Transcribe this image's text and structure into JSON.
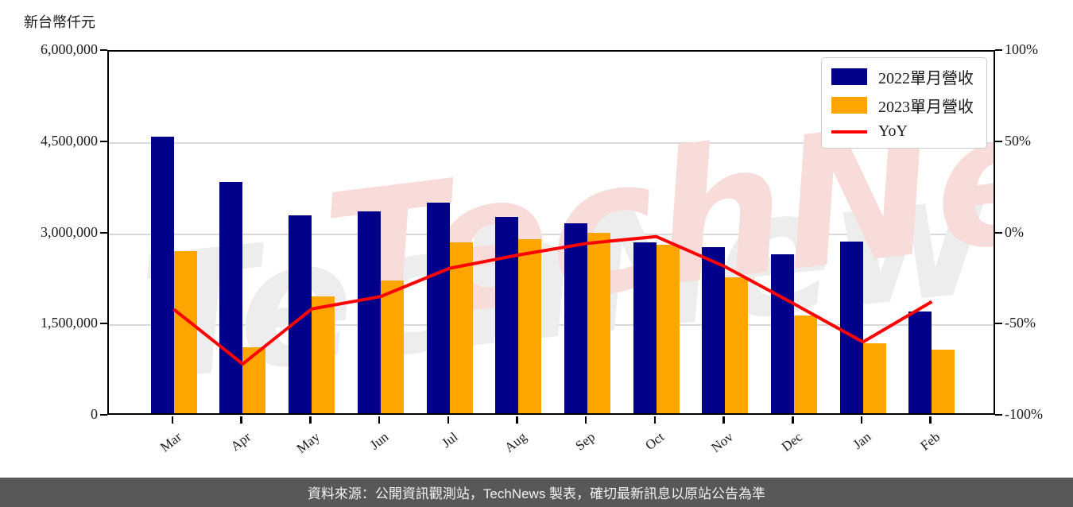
{
  "title": "新台幣仟元",
  "watermark": "TechNews",
  "caption": "資料來源：公開資訊觀測站，TechNews 製表，確切最新訊息以原站公告為準",
  "colors": {
    "bar_2022": "#00008B",
    "bar_2023": "#FFA500",
    "yoy_line": "#FF0000",
    "grid": "#DADADA",
    "caption_bg": "#58585A"
  },
  "legend": [
    {
      "label": "2022單月營收",
      "type": "patch",
      "color": "#00008B"
    },
    {
      "label": "2023單月營收",
      "type": "patch",
      "color": "#FFA500"
    },
    {
      "label": "YoY",
      "type": "line",
      "color": "#FF0000"
    }
  ],
  "chart_data": {
    "type": "bar",
    "title": "新台幣仟元",
    "categories": [
      "Mar",
      "Apr",
      "May",
      "Jun",
      "Jul",
      "Aug",
      "Sep",
      "Oct",
      "Nov",
      "Dec",
      "Jan",
      "Feb"
    ],
    "series": [
      {
        "name": "2022單月營收",
        "type": "bar",
        "axis": "left",
        "color": "#00008B",
        "values": [
          4550000,
          3800000,
          3260000,
          3320000,
          3460000,
          3230000,
          3130000,
          2810000,
          2730000,
          2610000,
          2820000,
          1670000
        ]
      },
      {
        "name": "2023單月營收",
        "type": "bar",
        "axis": "left",
        "color": "#FFA500",
        "values": [
          2670000,
          1090000,
          1920000,
          2180000,
          2810000,
          2860000,
          2970000,
          2770000,
          2240000,
          1610000,
          1150000,
          1050000
        ]
      },
      {
        "name": "YoY",
        "type": "line",
        "axis": "right",
        "color": "#FF0000",
        "values": [
          -41.3,
          -71.3,
          -41.1,
          -34.3,
          -18.8,
          -11.5,
          -5.1,
          -1.4,
          -17.9,
          -38.3,
          -59.2,
          -37.1
        ]
      }
    ],
    "left_axis": {
      "label": "新台幣仟元",
      "ylim": [
        0,
        6000000
      ],
      "ticks": [
        0,
        1500000,
        3000000,
        4500000,
        6000000
      ],
      "tick_labels": [
        "0",
        "1,500,000",
        "3,000,000",
        "4,500,000",
        "6,000,000"
      ],
      "grid": true
    },
    "right_axis": {
      "ylim": [
        -100,
        100
      ],
      "ticks": [
        -100,
        -50,
        0,
        50,
        100
      ],
      "tick_labels": [
        "-100%",
        "-50%",
        "0%",
        "50%",
        "100%"
      ]
    },
    "legend_position": "upper right",
    "xtick_rotation_deg": -38
  }
}
